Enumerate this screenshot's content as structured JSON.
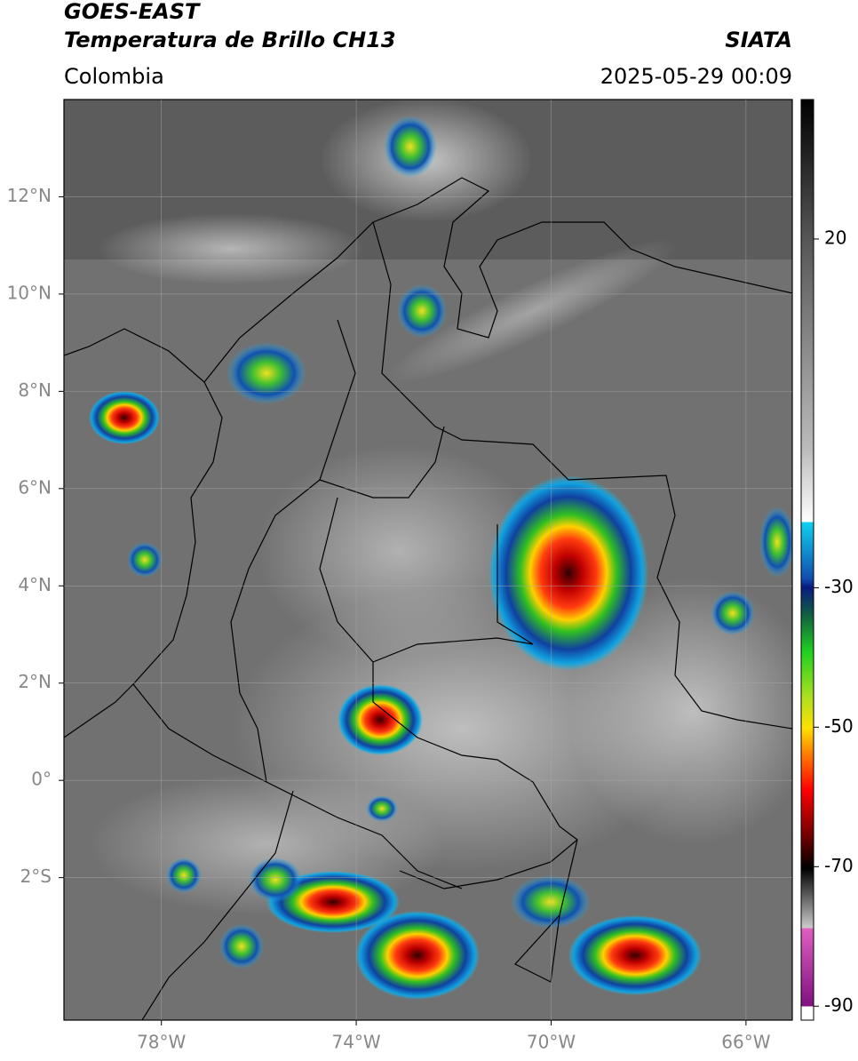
{
  "header": {
    "title": "GOES-EAST",
    "subtitle": "Temperatura de Brillo CH13",
    "source": "SIATA",
    "region": "Colombia",
    "datetime": "2025-05-29 00:09"
  },
  "map": {
    "lat_lim": [
      -4.93,
      14
    ],
    "lon_lim": [
      -80,
      -65.05
    ],
    "lat_ticks": [
      {
        "value": 12,
        "label": "12°N"
      },
      {
        "value": 10,
        "label": "10°N"
      },
      {
        "value": 8,
        "label": "8°N"
      },
      {
        "value": 6,
        "label": "6°N"
      },
      {
        "value": 4,
        "label": "4°N"
      },
      {
        "value": 2,
        "label": "2°N"
      },
      {
        "value": 0,
        "label": "0°"
      },
      {
        "value": -2,
        "label": "2°S"
      }
    ],
    "lon_ticks": [
      {
        "value": -78,
        "label": "78°W"
      },
      {
        "value": -74,
        "label": "74°W"
      },
      {
        "value": -70,
        "label": "70°W"
      },
      {
        "value": -66,
        "label": "66°W"
      }
    ],
    "grid": true
  },
  "colorbar": {
    "lim": [
      -92,
      40
    ],
    "ticks": [
      20,
      -30,
      -50,
      -70,
      -90
    ]
  }
}
